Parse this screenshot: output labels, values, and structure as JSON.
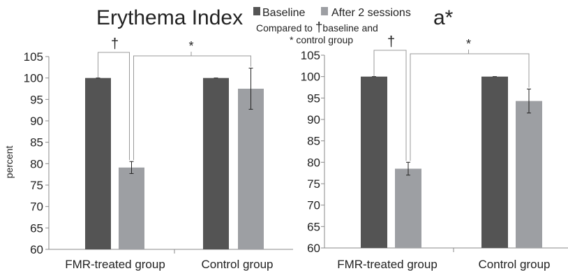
{
  "legend": {
    "items": [
      {
        "label": "Baseline",
        "color": "#545454"
      },
      {
        "label": "After 2 sessions",
        "color": "#9d9fa3"
      }
    ],
    "note_line1_prefix": "Compared to ",
    "note_dagger": "†",
    "note_line1_suffix": "baseline and",
    "note_line2": "* control group"
  },
  "significance": {
    "dagger": "†",
    "star": "*"
  },
  "colors": {
    "baseline": "#545454",
    "after": "#9d9fa3",
    "axis": "#888888",
    "bracket": "#999999",
    "error": "#222222"
  },
  "chart_data": [
    {
      "type": "bar",
      "title": "Erythema Index",
      "ylabel": "percent",
      "xlabel": "",
      "ylim": [
        60,
        105
      ],
      "yticks": [
        60,
        65,
        70,
        75,
        80,
        85,
        90,
        95,
        100,
        105
      ],
      "categories": [
        "FMR-treated group",
        "Control group"
      ],
      "series": [
        {
          "name": "Baseline",
          "values": [
            100,
            100
          ],
          "errors": [
            0,
            0
          ]
        },
        {
          "name": "After 2 sessions",
          "values": [
            79.1,
            97.5
          ],
          "errors": [
            1.4,
            4.8
          ]
        }
      ],
      "grid": false
    },
    {
      "type": "bar",
      "title": "a*",
      "ylabel": "",
      "xlabel": "",
      "ylim": [
        60,
        105
      ],
      "yticks": [
        60,
        65,
        70,
        75,
        80,
        85,
        90,
        95,
        100,
        105
      ],
      "categories": [
        "FMR-treated group",
        "Control group"
      ],
      "series": [
        {
          "name": "Baseline",
          "values": [
            100,
            100
          ],
          "errors": [
            0,
            0
          ]
        },
        {
          "name": "After 2 sessions",
          "values": [
            78.5,
            94.3
          ],
          "errors": [
            1.5,
            2.8
          ]
        }
      ],
      "grid": false
    }
  ]
}
